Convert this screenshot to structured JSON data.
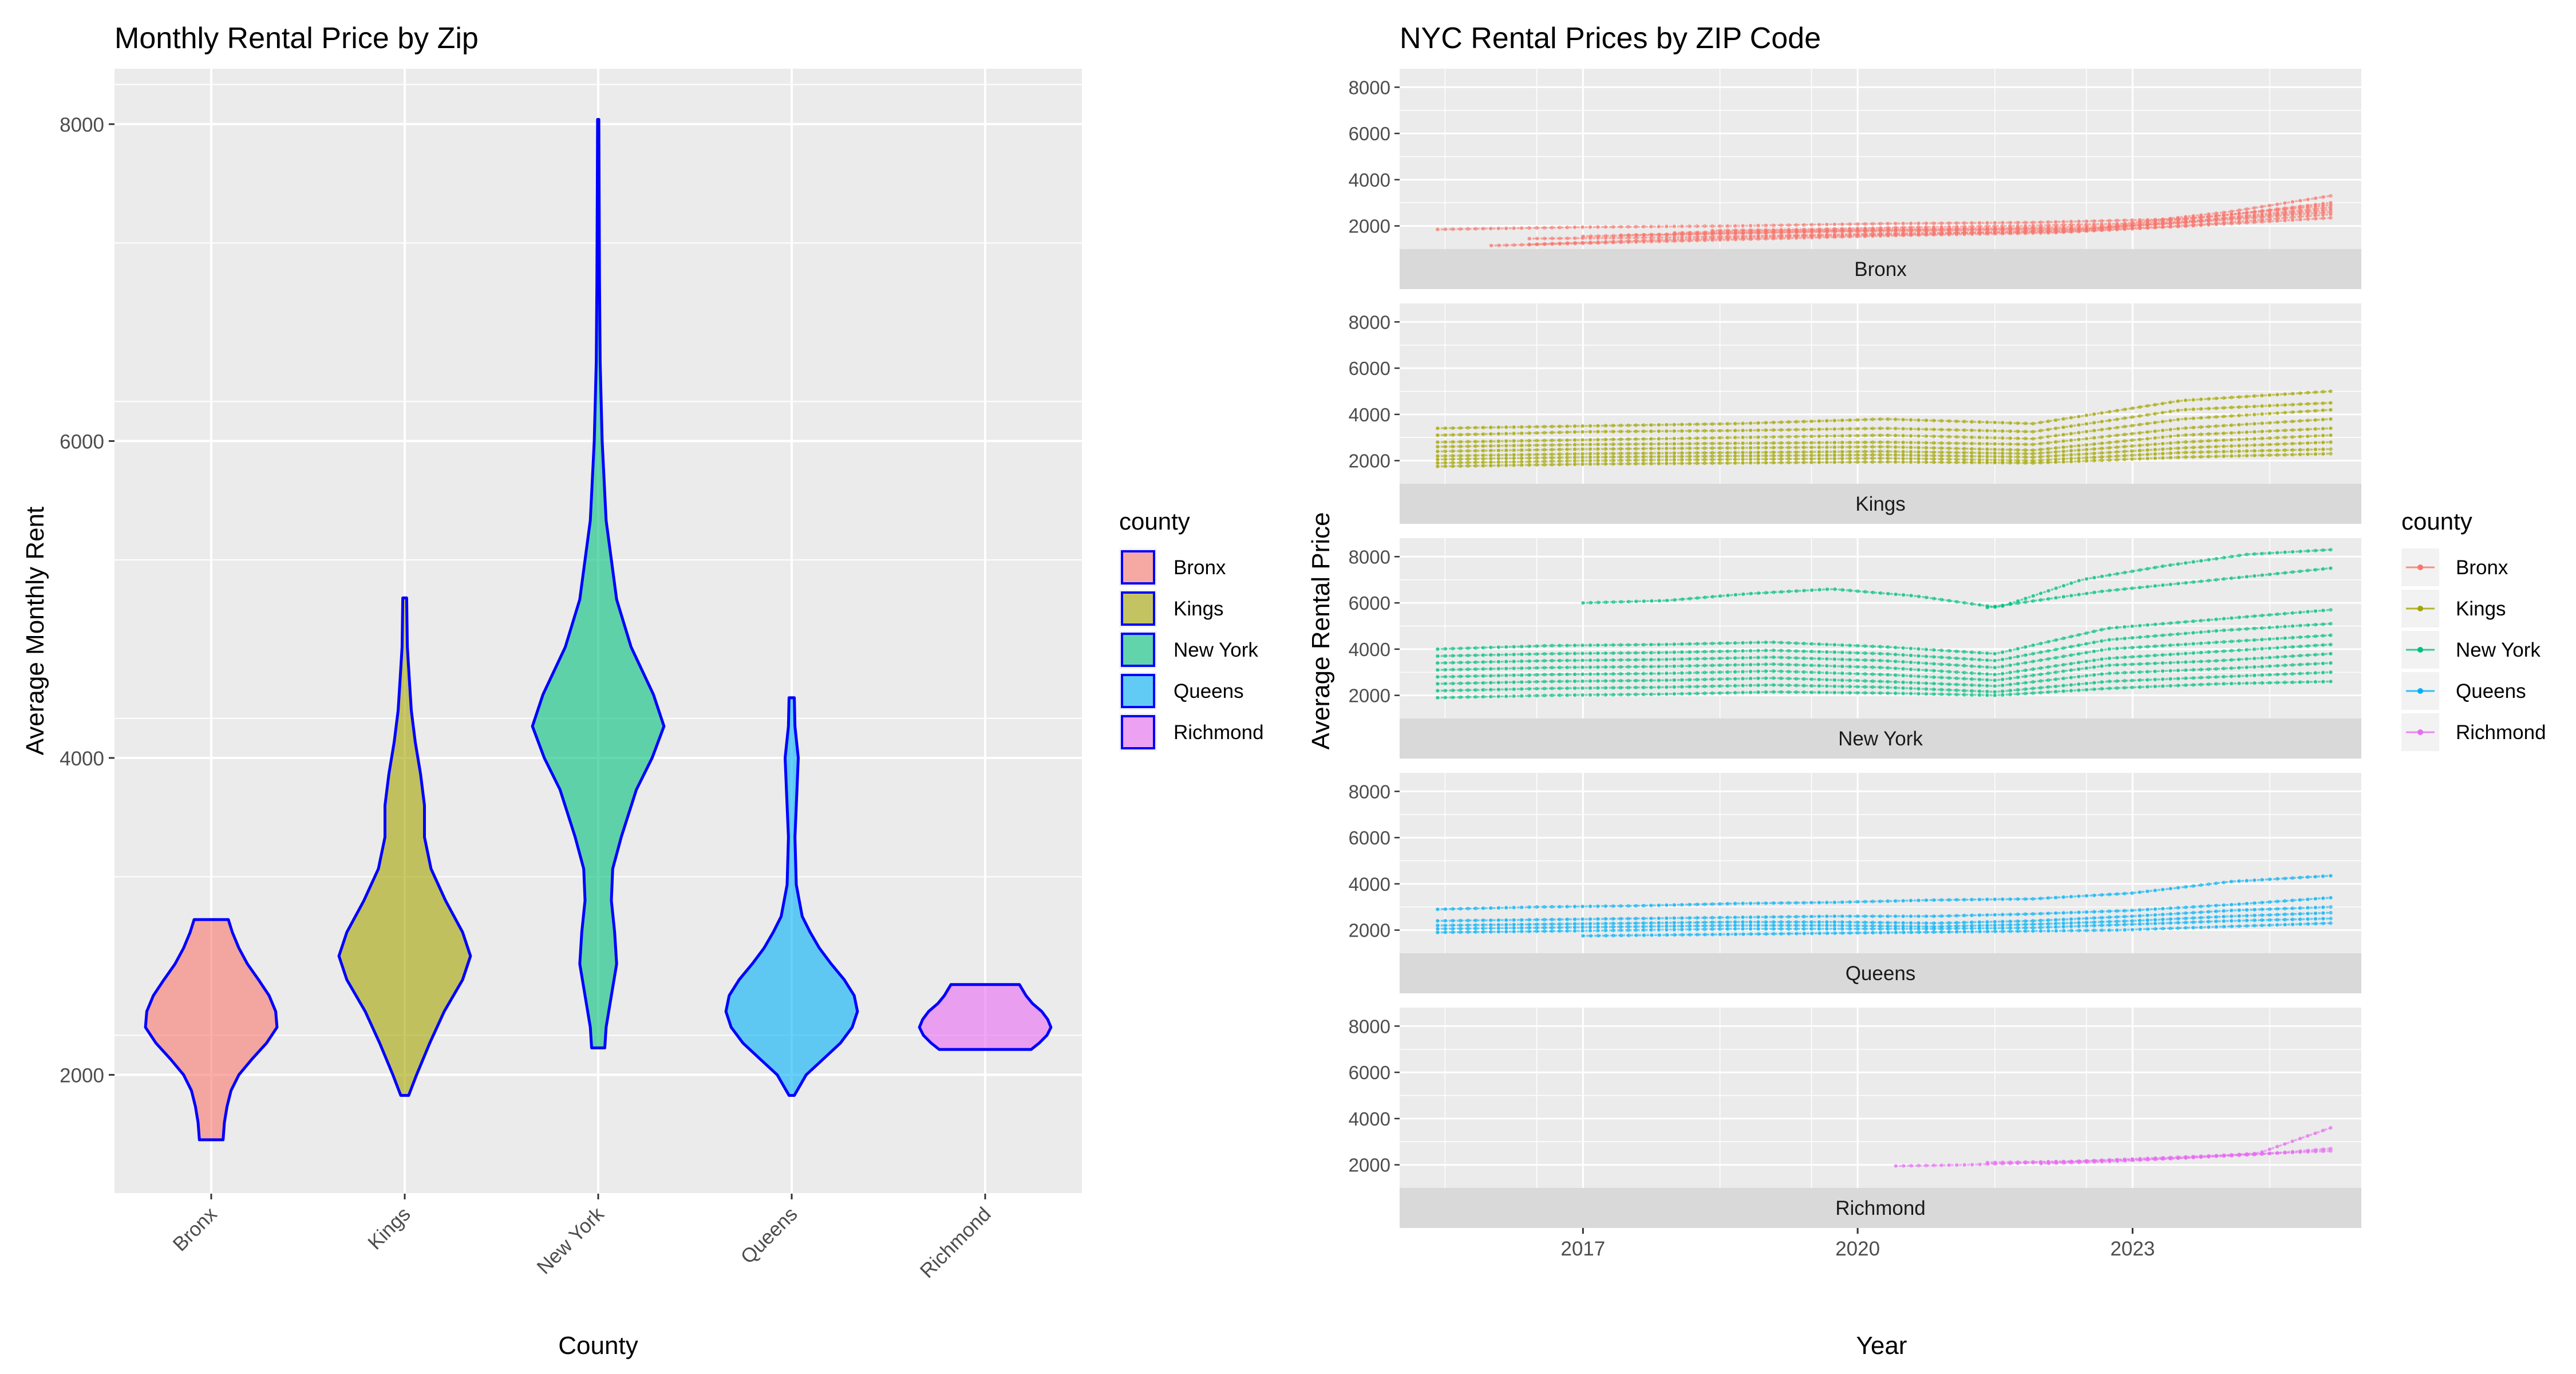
{
  "chart_data": [
    {
      "type": "violin",
      "title": "Monthly Rental Price by Zip",
      "xlabel": "County",
      "ylabel": "Average Monthly Rent",
      "categories": [
        "Bronx",
        "Kings",
        "New York",
        "Queens",
        "Richmond"
      ],
      "yticks": [
        2000,
        4000,
        6000,
        8000
      ],
      "ylim": [
        1250,
        8350
      ],
      "grid": true,
      "legend": {
        "title": "county",
        "position": "right",
        "entries": [
          "Bronx",
          "Kings",
          "New York",
          "Queens",
          "Richmond"
        ]
      },
      "outline_color": "#0000ff",
      "violins": [
        {
          "county": "Bronx",
          "min": 1590,
          "max": 2980,
          "median": 2300,
          "profile": [
            [
              1590,
              0.18
            ],
            [
              1700,
              0.2
            ],
            [
              1800,
              0.24
            ],
            [
              1900,
              0.3
            ],
            [
              2000,
              0.42
            ],
            [
              2100,
              0.62
            ],
            [
              2200,
              0.84
            ],
            [
              2300,
              1.0
            ],
            [
              2400,
              0.98
            ],
            [
              2500,
              0.88
            ],
            [
              2600,
              0.72
            ],
            [
              2700,
              0.55
            ],
            [
              2800,
              0.42
            ],
            [
              2900,
              0.32
            ],
            [
              2980,
              0.26
            ]
          ]
        },
        {
          "county": "Kings",
          "min": 1870,
          "max": 5010,
          "median": 2750,
          "profile": [
            [
              1870,
              0.06
            ],
            [
              2000,
              0.18
            ],
            [
              2200,
              0.38
            ],
            [
              2400,
              0.6
            ],
            [
              2600,
              0.88
            ],
            [
              2750,
              1.0
            ],
            [
              2900,
              0.88
            ],
            [
              3100,
              0.62
            ],
            [
              3300,
              0.4
            ],
            [
              3500,
              0.3
            ],
            [
              3700,
              0.3
            ],
            [
              3900,
              0.24
            ],
            [
              4100,
              0.16
            ],
            [
              4300,
              0.1
            ],
            [
              4500,
              0.07
            ],
            [
              4700,
              0.04
            ],
            [
              5010,
              0.03
            ]
          ]
        },
        {
          "county": "New York",
          "min": 2170,
          "max": 8030,
          "median": 4200,
          "profile": [
            [
              2170,
              0.1
            ],
            [
              2300,
              0.12
            ],
            [
              2500,
              0.2
            ],
            [
              2700,
              0.28
            ],
            [
              2900,
              0.25
            ],
            [
              3100,
              0.2
            ],
            [
              3300,
              0.22
            ],
            [
              3500,
              0.35
            ],
            [
              3800,
              0.58
            ],
            [
              4000,
              0.82
            ],
            [
              4200,
              1.0
            ],
            [
              4400,
              0.84
            ],
            [
              4700,
              0.5
            ],
            [
              5000,
              0.28
            ],
            [
              5500,
              0.12
            ],
            [
              6000,
              0.06
            ],
            [
              6500,
              0.03
            ],
            [
              7000,
              0.02
            ],
            [
              7500,
              0.015
            ],
            [
              8030,
              0.01
            ]
          ]
        },
        {
          "county": "Queens",
          "min": 1870,
          "max": 4380,
          "median": 2400,
          "profile": [
            [
              1870,
              0.04
            ],
            [
              2000,
              0.22
            ],
            [
              2100,
              0.48
            ],
            [
              2200,
              0.74
            ],
            [
              2300,
              0.92
            ],
            [
              2400,
              1.0
            ],
            [
              2500,
              0.95
            ],
            [
              2600,
              0.8
            ],
            [
              2700,
              0.6
            ],
            [
              2800,
              0.42
            ],
            [
              2900,
              0.28
            ],
            [
              3000,
              0.16
            ],
            [
              3200,
              0.07
            ],
            [
              3500,
              0.05
            ],
            [
              3800,
              0.08
            ],
            [
              4000,
              0.1
            ],
            [
              4200,
              0.05
            ],
            [
              4380,
              0.04
            ]
          ]
        },
        {
          "county": "Richmond",
          "min": 2160,
          "max": 2570,
          "median": 2320,
          "profile": [
            [
              2160,
              0.7
            ],
            [
              2200,
              0.82
            ],
            [
              2250,
              0.94
            ],
            [
              2300,
              1.0
            ],
            [
              2350,
              0.95
            ],
            [
              2400,
              0.86
            ],
            [
              2450,
              0.72
            ],
            [
              2500,
              0.62
            ],
            [
              2570,
              0.52
            ]
          ]
        }
      ]
    },
    {
      "type": "line",
      "title": "NYC Rental Prices by ZIP Code",
      "xlabel": "Year",
      "ylabel": "Average Rental Price",
      "facet": "county",
      "xticks": [
        "2017",
        "2020",
        "2023"
      ],
      "xlim": [
        "2015-01-01",
        "2025-07-01"
      ],
      "yticks": [
        2000,
        4000,
        6000,
        8000
      ],
      "ylim": [
        1000,
        8800
      ],
      "grid": true,
      "legend": {
        "title": "county",
        "position": "right",
        "entries": [
          "Bronx",
          "Kings",
          "New York",
          "Queens",
          "Richmond"
        ]
      },
      "panels": [
        {
          "county": "Bronx",
          "lines": [
            {
              "start": "2015-06-01",
              "end": "2025-03-01",
              "values": [
                1850,
                1950,
                2000,
                2100,
                2150,
                2300,
                2900
              ]
            },
            {
              "start": "2016-01-01",
              "end": "2025-03-01",
              "values": [
                1150,
                1300,
                1450,
                1600,
                1700,
                2000,
                2350
              ]
            },
            {
              "start": "2016-06-01",
              "end": "2025-03-01",
              "values": [
                1450,
                1500,
                1600,
                1700,
                1750,
                2050,
                2500
              ]
            },
            {
              "start": "2016-06-01",
              "end": "2025-03-01",
              "values": [
                1200,
                1400,
                1550,
                1650,
                1800,
                2200,
                2700
              ]
            },
            {
              "start": "2017-01-01",
              "end": "2025-03-01",
              "values": [
                1550,
                1650,
                1750,
                1800,
                1850,
                2200,
                2600
              ]
            },
            {
              "start": "2017-06-01",
              "end": "2025-03-01",
              "values": [
                1600,
                1700,
                1800,
                1850,
                1900,
                2300,
                2800
              ]
            },
            {
              "start": "2018-01-01",
              "end": "2025-03-01",
              "values": [
                1700,
                1800,
                1850,
                1900,
                2000,
                2450,
                3000
              ]
            },
            {
              "start": "2018-06-01",
              "end": "2025-03-01",
              "values": [
                1800,
                1850,
                1950,
                2000,
                2100,
                2600,
                3300
              ]
            }
          ]
        },
        {
          "county": "Kings",
          "lines": [
            {
              "start": "2015-06-01",
              "end": "2025-03-01",
              "values": [
                3400,
                3500,
                3600,
                3800,
                3600,
                4600,
                5000
              ]
            },
            {
              "start": "2015-06-01",
              "end": "2025-03-01",
              "values": [
                3100,
                3250,
                3300,
                3400,
                3250,
                4200,
                4500
              ]
            },
            {
              "start": "2015-06-01",
              "end": "2025-03-01",
              "values": [
                2800,
                2900,
                3000,
                3100,
                2950,
                3800,
                4200
              ]
            },
            {
              "start": "2015-06-01",
              "end": "2025-03-01",
              "values": [
                2600,
                2700,
                2750,
                2800,
                2700,
                3400,
                3800
              ]
            },
            {
              "start": "2015-06-01",
              "end": "2025-03-01",
              "values": [
                2400,
                2500,
                2550,
                2600,
                2450,
                3100,
                3400
              ]
            },
            {
              "start": "2015-06-01",
              "end": "2025-03-01",
              "values": [
                2200,
                2300,
                2350,
                2400,
                2300,
                2800,
                3100
              ]
            },
            {
              "start": "2015-06-01",
              "end": "2025-03-01",
              "values": [
                2050,
                2150,
                2200,
                2250,
                2150,
                2550,
                2800
              ]
            },
            {
              "start": "2015-06-01",
              "end": "2025-03-01",
              "values": [
                1900,
                2000,
                2050,
                2100,
                2000,
                2350,
                2500
              ]
            },
            {
              "start": "2015-06-01",
              "end": "2025-03-01",
              "values": [
                1750,
                1850,
                1900,
                1950,
                1900,
                2150,
                2300
              ]
            }
          ]
        },
        {
          "county": "New York",
          "lines": [
            {
              "start": "2017-01-01",
              "end": "2025-03-01",
              "values": [
                6000,
                6100,
                6400,
                6600,
                6300,
                5800,
                7000,
                7600,
                8100,
                8300
              ]
            },
            {
              "start": "2021-06-01",
              "end": "2025-03-01",
              "values": [
                5800,
                6500,
                7000,
                7500
              ]
            },
            {
              "start": "2015-06-01",
              "end": "2025-03-01",
              "values": [
                4000,
                4150,
                4200,
                4300,
                4100,
                3800,
                4900,
                5300,
                5700
              ]
            },
            {
              "start": "2015-06-01",
              "end": "2025-03-01",
              "values": [
                3700,
                3800,
                3850,
                3950,
                3800,
                3500,
                4400,
                4800,
                5100
              ]
            },
            {
              "start": "2015-06-01",
              "end": "2025-03-01",
              "values": [
                3400,
                3500,
                3550,
                3650,
                3500,
                3200,
                4000,
                4300,
                4600
              ]
            },
            {
              "start": "2015-06-01",
              "end": "2025-03-01",
              "values": [
                3100,
                3200,
                3250,
                3350,
                3200,
                2900,
                3600,
                3900,
                4200
              ]
            },
            {
              "start": "2015-06-01",
              "end": "2025-03-01",
              "values": [
                2800,
                2900,
                2950,
                3050,
                2900,
                2650,
                3300,
                3500,
                3800
              ]
            },
            {
              "start": "2015-06-01",
              "end": "2025-03-01",
              "values": [
                2500,
                2600,
                2650,
                2750,
                2600,
                2400,
                2950,
                3150,
                3400
              ]
            },
            {
              "start": "2015-06-01",
              "end": "2025-03-01",
              "values": [
                2200,
                2300,
                2350,
                2450,
                2350,
                2150,
                2600,
                2800,
                3000
              ]
            },
            {
              "start": "2015-06-01",
              "end": "2025-03-01",
              "values": [
                1900,
                2000,
                2050,
                2150,
                2100,
                2000,
                2300,
                2500,
                2600
              ]
            }
          ]
        },
        {
          "county": "Queens",
          "lines": [
            {
              "start": "2015-06-01",
              "end": "2025-03-01",
              "values": [
                2900,
                3000,
                3050,
                3150,
                3200,
                3300,
                3350,
                3600,
                4100,
                4350
              ]
            },
            {
              "start": "2015-06-01",
              "end": "2025-03-01",
              "values": [
                2400,
                2450,
                2500,
                2550,
                2600,
                2600,
                2700,
                2850,
                3100,
                3400
              ]
            },
            {
              "start": "2015-06-01",
              "end": "2025-03-01",
              "values": [
                2200,
                2250,
                2300,
                2350,
                2350,
                2300,
                2400,
                2600,
                2850,
                3000
              ]
            },
            {
              "start": "2015-06-01",
              "end": "2025-03-01",
              "values": [
                2050,
                2100,
                2150,
                2200,
                2200,
                2150,
                2250,
                2400,
                2600,
                2750
              ]
            },
            {
              "start": "2015-06-01",
              "end": "2025-03-01",
              "values": [
                1900,
                1950,
                2000,
                2050,
                2050,
                2050,
                2100,
                2250,
                2400,
                2500
              ]
            },
            {
              "start": "2017-01-01",
              "end": "2025-03-01",
              "values": [
                1750,
                1800,
                1850,
                1900,
                1950,
                2000,
                2150,
                2300
              ]
            }
          ]
        },
        {
          "county": "Richmond",
          "lines": [
            {
              "start": "2020-06-01",
              "end": "2025-03-01",
              "values": [
                1950,
                2000,
                2100,
                2200,
                2300,
                2450,
                2700
              ]
            },
            {
              "start": "2021-06-01",
              "end": "2025-03-01",
              "values": [
                2100,
                2150,
                2300,
                2450,
                2600
              ]
            },
            {
              "start": "2022-01-01",
              "end": "2025-03-01",
              "values": [
                2050,
                2150,
                2300,
                2500,
                3600
              ]
            }
          ]
        }
      ]
    }
  ],
  "colors": {
    "Bronx": "#F8766D",
    "Kings": "#A3A500",
    "New York": "#00BF7D",
    "Queens": "#00B0F6",
    "Richmond": "#E76BF3"
  }
}
